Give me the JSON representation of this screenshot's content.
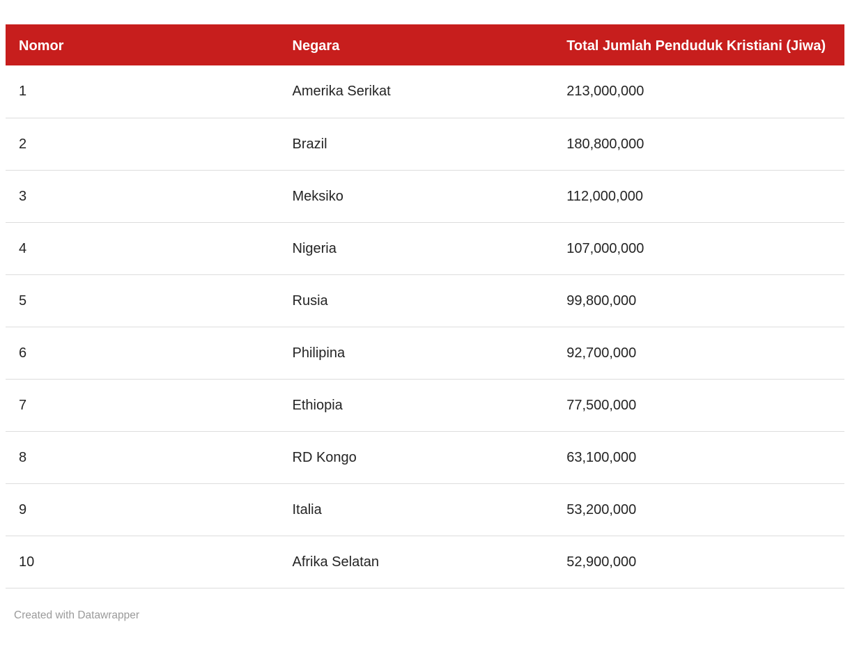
{
  "colors": {
    "header_bg": "#C71E1D",
    "header_text": "#ffffff",
    "body_text": "#242424",
    "divider": "#dddddd",
    "footer_text": "#9a9a9a"
  },
  "table": {
    "columns": [
      {
        "label": "Nomor"
      },
      {
        "label": "Negara"
      },
      {
        "label": "Total Jumlah Penduduk Kristiani (Jiwa)"
      }
    ],
    "rows": [
      {
        "nomor": "1",
        "negara": "Amerika Serikat",
        "total": "213,000,000"
      },
      {
        "nomor": "2",
        "negara": "Brazil",
        "total": "180,800,000"
      },
      {
        "nomor": "3",
        "negara": "Meksiko",
        "total": "112,000,000"
      },
      {
        "nomor": "4",
        "negara": "Nigeria",
        "total": "107,000,000"
      },
      {
        "nomor": "5",
        "negara": "Rusia",
        "total": "99,800,000"
      },
      {
        "nomor": "6",
        "negara": "Philipina",
        "total": "92,700,000"
      },
      {
        "nomor": "7",
        "negara": "Ethiopia",
        "total": "77,500,000"
      },
      {
        "nomor": "8",
        "negara": "RD Kongo",
        "total": "63,100,000"
      },
      {
        "nomor": "9",
        "negara": "Italia",
        "total": "53,200,000"
      },
      {
        "nomor": "10",
        "negara": "Afrika Selatan",
        "total": "52,900,000"
      }
    ]
  },
  "footer": {
    "text": "Created with Datawrapper"
  },
  "chart_data": {
    "type": "table",
    "columns": [
      "Nomor",
      "Negara",
      "Total Jumlah Penduduk Kristiani (Jiwa)"
    ],
    "rows": [
      [
        1,
        "Amerika Serikat",
        213000000
      ],
      [
        2,
        "Brazil",
        180800000
      ],
      [
        3,
        "Meksiko",
        112000000
      ],
      [
        4,
        "Nigeria",
        107000000
      ],
      [
        5,
        "Rusia",
        99800000
      ],
      [
        6,
        "Philipina",
        92700000
      ],
      [
        7,
        "Ethiopia",
        77500000
      ],
      [
        8,
        "RD Kongo",
        63100000
      ],
      [
        9,
        "Italia",
        53200000
      ],
      [
        10,
        "Afrika Selatan",
        52900000
      ]
    ],
    "title": "",
    "legend": "none",
    "notes": "Ranked list of countries by total Christian population (Jiwa)"
  }
}
